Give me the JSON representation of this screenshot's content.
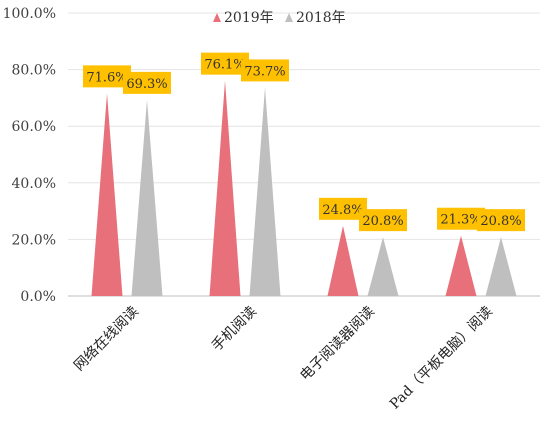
{
  "chart_data": {
    "type": "bar",
    "bar_shape": "triangle",
    "categories": [
      "网络在线阅读",
      "手机阅读",
      "电子阅读器阅读",
      "Pad（平板电脑）阅读"
    ],
    "series": [
      {
        "name": "2019年",
        "values": [
          71.6,
          76.1,
          24.8,
          21.3
        ],
        "labels": [
          "71.6%",
          "76.1%",
          "24.8%",
          "21.3%"
        ],
        "color": "#e8707a"
      },
      {
        "name": "2018年",
        "values": [
          69.3,
          73.7,
          20.8,
          20.8
        ],
        "labels": [
          "69.3%",
          "73.7%",
          "20.8%",
          "20.8%"
        ],
        "color": "#bfbfbf"
      }
    ],
    "y_ticks": [
      "0.0%",
      "20.0%",
      "40.0%",
      "60.0%",
      "80.0%",
      "100.0%"
    ],
    "ylim": [
      0,
      100
    ],
    "grid": true,
    "legend_position": "top-center",
    "data_label_bg": "#ffc000"
  }
}
